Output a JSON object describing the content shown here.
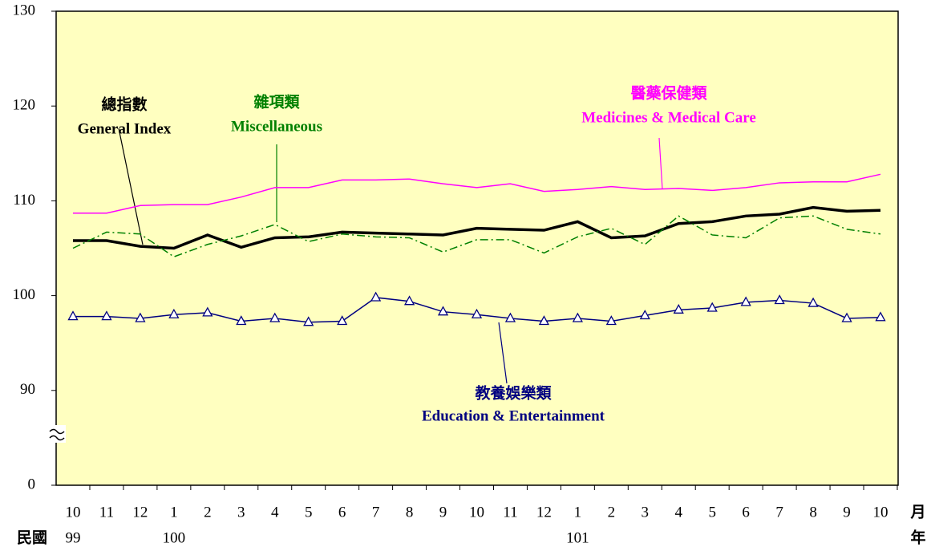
{
  "chart_data": {
    "type": "line",
    "categories": [
      "10",
      "11",
      "12",
      "1",
      "2",
      "3",
      "4",
      "5",
      "6",
      "7",
      "8",
      "9",
      "10",
      "11",
      "12",
      "1",
      "2",
      "3",
      "4",
      "5",
      "6",
      "7",
      "8",
      "9",
      "10"
    ],
    "years": [
      "99",
      null,
      null,
      "100",
      null,
      null,
      null,
      null,
      null,
      null,
      null,
      null,
      null,
      null,
      null,
      "101",
      null,
      null,
      null,
      null,
      null,
      null,
      null,
      null,
      null
    ],
    "era_label": "民國",
    "month_unit": "月",
    "year_unit": "年",
    "ylim": [
      0,
      130
    ],
    "yticks": [
      0,
      90,
      100,
      110,
      120,
      130
    ],
    "axis_break": true,
    "background": "#ffffc0",
    "series": [
      {
        "name": "General Index",
        "name_zh": "總指數",
        "color": "#000000",
        "style": "thick",
        "values": [
          105.8,
          105.8,
          105.2,
          105.0,
          106.4,
          105.1,
          106.1,
          106.2,
          106.7,
          106.6,
          106.5,
          106.4,
          107.1,
          107.0,
          106.9,
          107.8,
          106.1,
          106.3,
          107.6,
          107.8,
          108.4,
          108.6,
          109.3,
          108.9,
          109.0
        ]
      },
      {
        "name": "Miscellaneous",
        "name_zh": "雜項類",
        "color": "#008000",
        "style": "dashdot",
        "values": [
          105.0,
          106.7,
          106.5,
          104.1,
          105.4,
          106.3,
          107.5,
          105.7,
          106.5,
          106.2,
          106.1,
          104.6,
          105.9,
          105.9,
          104.5,
          106.2,
          107.1,
          105.4,
          108.4,
          106.4,
          106.1,
          108.2,
          108.4,
          107.0,
          106.5
        ]
      },
      {
        "name": "Medicines & Medical Care",
        "name_zh": "醫藥保健類",
        "color": "#ff00ff",
        "style": "thin",
        "values": [
          108.7,
          108.7,
          109.5,
          109.6,
          109.6,
          110.4,
          111.4,
          111.4,
          112.2,
          112.2,
          112.3,
          111.8,
          111.4,
          111.8,
          111.0,
          111.2,
          111.5,
          111.2,
          111.3,
          111.1,
          111.4,
          111.9,
          112.0,
          112.0,
          112.8
        ]
      },
      {
        "name": "Education & Entertainment",
        "name_zh": "教養娛樂類",
        "color": "#000080",
        "style": "triangle",
        "values": [
          97.8,
          97.8,
          97.6,
          98.0,
          98.2,
          97.3,
          97.6,
          97.2,
          97.3,
          99.8,
          99.4,
          98.3,
          98.0,
          97.6,
          97.3,
          97.6,
          97.3,
          97.9,
          98.5,
          98.7,
          99.3,
          99.5,
          99.2,
          97.6,
          97.7
        ]
      }
    ]
  }
}
